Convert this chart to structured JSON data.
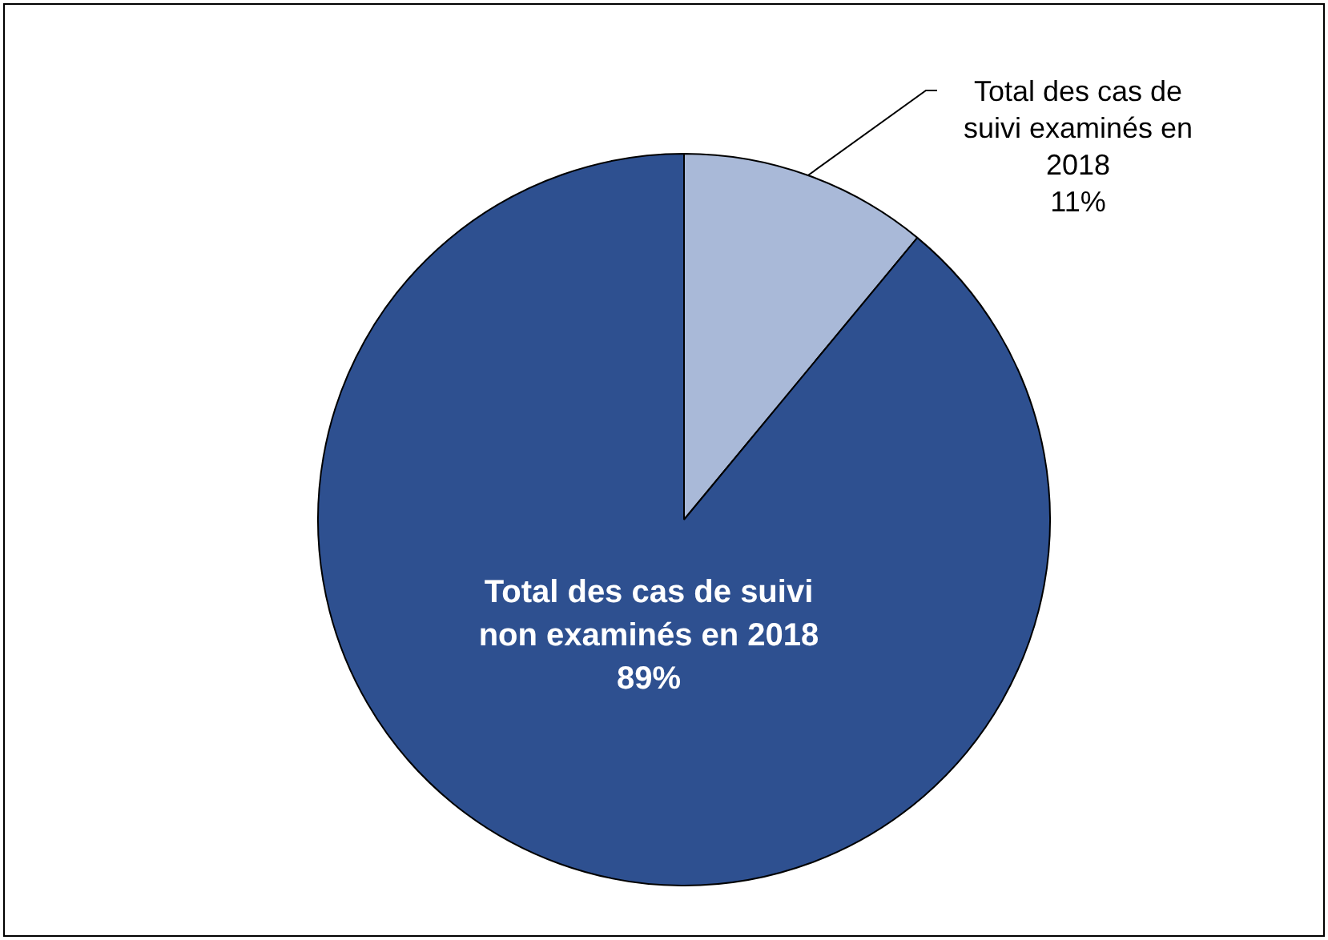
{
  "chart_data": {
    "type": "pie",
    "categories": [
      "Total des cas de suivi examinés en 2018",
      "Total des cas de suivi non examinés en 2018"
    ],
    "values": [
      11,
      89
    ],
    "colors": [
      "#a9b9d8",
      "#2e5090"
    ],
    "value_labels": [
      "11%",
      "89%"
    ],
    "legend": false
  }
}
